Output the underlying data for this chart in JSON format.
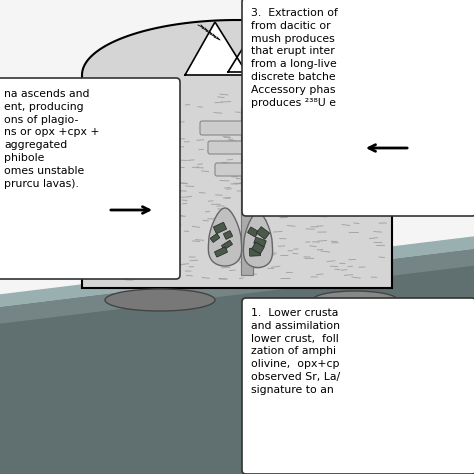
{
  "bg_color": "#ffffff",
  "box1_text": "na ascends and\nent, producing\nons of plagio-\nns or opx +cpx +\naggregated\nphibole\nomes unstable\nprurcu lavas).",
  "box2_text": "3.  Extraction of\nfrom dacitic or\nmush produces\nthat erupt inter\nfrom a long-live\ndiscrete batche\nAccessory phas\nproduces ²³⁸U e",
  "box3_text": "1.  Lower crusta\nand assimilation\nlower crust,  foll\nzation of amphi\nolivine,  opx+cp\nobserved Sr, La/\nsignature to an",
  "ground_fill": "#c8c8c8",
  "stipple_bg": "#e8e8e8",
  "slab_dark": "#607070",
  "slab_stripe": "#8aabab",
  "slab_mid": "#506060",
  "pipe_color": "#aaaaaa",
  "pipe_edge": "#777777",
  "bar_color": "#cccccc",
  "bar_edge": "#888888",
  "cumulate_fill": "#c0c0c0",
  "cumulate_edge": "#666666",
  "mineral_fill": "#4a5a4a",
  "mineral_edge": "#222222",
  "ellipse_fill": "#808080",
  "ellipse_edge": "#555555"
}
